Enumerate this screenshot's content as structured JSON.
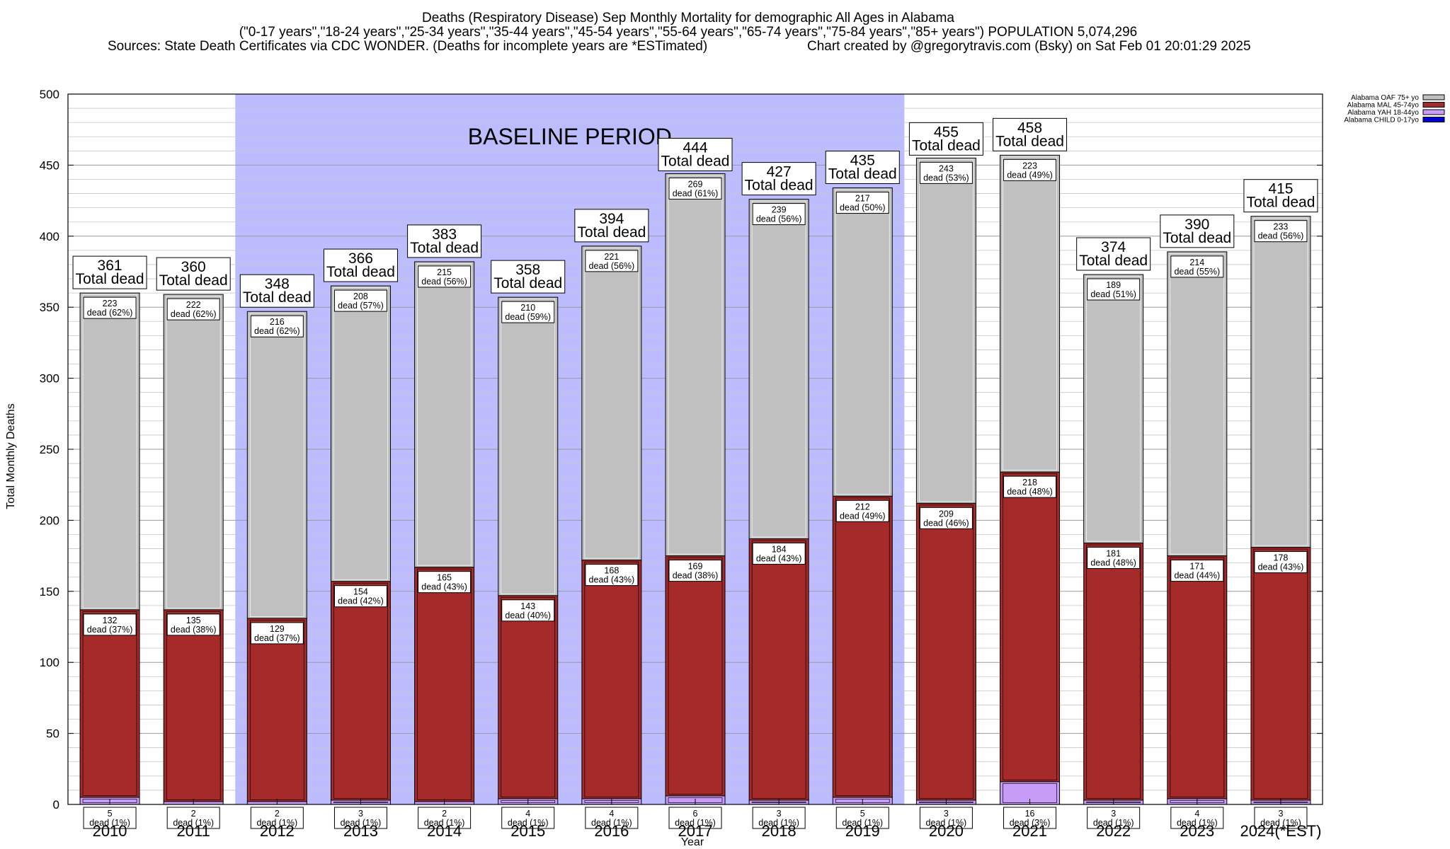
{
  "chart_data": {
    "type": "bar",
    "stacked": true,
    "title": [
      "Deaths (Respiratory Disease) Sep Monthly Mortality for demographic All Ages in Alabama",
      "(\"0-17 years\",\"18-24 years\",\"25-34 years\",\"35-44 years\",\"45-54 years\",\"55-64 years\",\"65-74 years\",\"75-84 years\",\"85+ years\") POPULATION 5,074,296"
    ],
    "sources": "Sources: State Death Certificates via CDC WONDER. (Deaths for incomplete years are *ESTimated)",
    "credit": "Chart created by @gregorytravis.com (Bsky) on Sat Feb 01 20:01:29 2025",
    "xlabel": "Year",
    "ylabel": "Total Monthly Deaths",
    "ylim": [
      0,
      500
    ],
    "yticks": [
      "0",
      "50",
      "100",
      "150",
      "200",
      "250",
      "300",
      "350",
      "400",
      "450",
      "500"
    ],
    "grid": true,
    "legend_position": "top-right",
    "baseline_label": "BASELINE PERIOD",
    "baseline_range": [
      "2012",
      "2019"
    ],
    "baseline_color": "#bcbcff",
    "total_suffix": "Total dead",
    "segment_suffix": "dead",
    "categories": [
      "2010",
      "2011",
      "2012",
      "2013",
      "2014",
      "2015",
      "2016",
      "2017",
      "2018",
      "2019",
      "2020",
      "2021",
      "2022",
      "2023",
      "2024(*EST)"
    ],
    "totals": [
      361,
      360,
      348,
      366,
      383,
      358,
      394,
      444,
      427,
      435,
      455,
      458,
      374,
      390,
      415
    ],
    "series": [
      {
        "name": "Alabama CHILD 0-17yo",
        "color": "#0000cc",
        "values": [
          0,
          0,
          0,
          0,
          0,
          0,
          0,
          0,
          0,
          0,
          0,
          0,
          0,
          0,
          0
        ]
      },
      {
        "name": "Alabama YAH 18-44yo",
        "color": "#c79cf7",
        "values": [
          5,
          2,
          2,
          3,
          2,
          4,
          4,
          6,
          3,
          5,
          3,
          16,
          3,
          4,
          3
        ],
        "pcts": [
          "1%",
          "1%",
          "1%",
          "1%",
          "1%",
          "1%",
          "1%",
          "1%",
          "1%",
          "1%",
          "1%",
          "3%",
          "1%",
          "1%",
          "1%"
        ]
      },
      {
        "name": "Alabama MAL 45-74yo",
        "color": "#a52a2a",
        "values": [
          132,
          135,
          129,
          154,
          165,
          143,
          168,
          169,
          184,
          212,
          209,
          218,
          181,
          171,
          178
        ],
        "pcts": [
          "37%",
          "38%",
          "37%",
          "42%",
          "43%",
          "40%",
          "43%",
          "38%",
          "43%",
          "49%",
          "46%",
          "48%",
          "48%",
          "44%",
          "43%"
        ]
      },
      {
        "name": "Alabama OAF 75+ yo",
        "color": "#c0c0c0",
        "values": [
          223,
          222,
          216,
          208,
          215,
          210,
          221,
          269,
          239,
          217,
          243,
          223,
          189,
          214,
          233
        ],
        "pcts": [
          "62%",
          "62%",
          "62%",
          "57%",
          "56%",
          "59%",
          "56%",
          "61%",
          "56%",
          "50%",
          "53%",
          "49%",
          "51%",
          "55%",
          "56%"
        ]
      }
    ]
  }
}
